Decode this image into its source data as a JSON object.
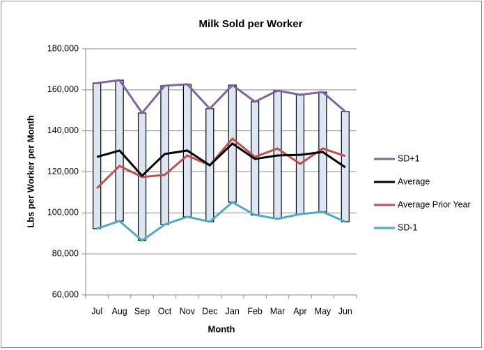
{
  "chart_data": {
    "type": "line",
    "title": "Milk Sold per Worker",
    "x_label": "Month",
    "y_label": "Lbs per Worker per Month",
    "categories": [
      "Jul",
      "Aug",
      "Sep",
      "Oct",
      "Nov",
      "Dec",
      "Jan",
      "Feb",
      "Mar",
      "Apr",
      "May",
      "Jun"
    ],
    "series": [
      {
        "name": "SD+1",
        "color": "#8064a2",
        "values": [
          163300,
          164700,
          148700,
          162000,
          162700,
          150800,
          162300,
          154200,
          159600,
          157600,
          158900,
          149400
        ]
      },
      {
        "name": "Average",
        "color": "#000000",
        "values": [
          127300,
          130400,
          118100,
          128700,
          130400,
          123200,
          133800,
          126300,
          128000,
          128300,
          129700,
          122200
        ]
      },
      {
        "name": "Average Prior Year",
        "color": "#c0504d",
        "values": [
          112000,
          122900,
          117500,
          118500,
          128000,
          123200,
          136200,
          127300,
          131400,
          123900,
          131400,
          127700
        ]
      },
      {
        "name": "SD-1",
        "color": "#4bacc6",
        "values": [
          92300,
          96000,
          86500,
          94300,
          98100,
          95700,
          105200,
          99000,
          97100,
          99400,
          100500,
          95700
        ]
      }
    ],
    "range_bars": {
      "color": "#dce6f2",
      "edge": "#000000"
    },
    "ylim": [
      60000,
      180000
    ],
    "yticks": [
      {
        "value": 60000,
        "label": "60,000"
      },
      {
        "value": 80000,
        "label": "80,000"
      },
      {
        "value": 100000,
        "label": "100,000"
      },
      {
        "value": 120000,
        "label": "120,000"
      },
      {
        "value": 140000,
        "label": "140,000"
      },
      {
        "value": 160000,
        "label": "160,000"
      },
      {
        "value": 180000,
        "label": "180,000"
      }
    ],
    "grid": true,
    "legend": "right"
  }
}
